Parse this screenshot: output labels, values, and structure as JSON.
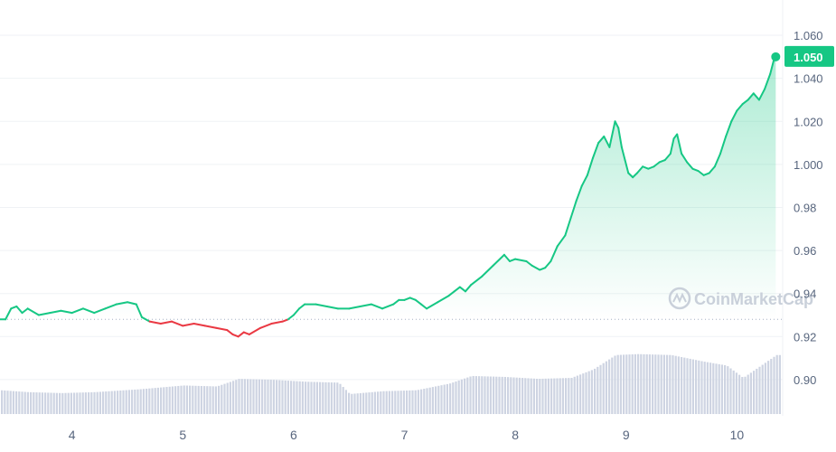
{
  "chart_data": {
    "type": "area",
    "title": "",
    "xlabel": "",
    "ylabel": "",
    "xlim": [
      3.35,
      10.38
    ],
    "ylim": [
      0.884,
      1.068
    ],
    "x_ticks": [
      {
        "value": 4,
        "label": "4"
      },
      {
        "value": 5,
        "label": "5"
      },
      {
        "value": 6,
        "label": "6"
      },
      {
        "value": 7,
        "label": "7"
      },
      {
        "value": 8,
        "label": "8"
      },
      {
        "value": 9,
        "label": "9"
      },
      {
        "value": 10,
        "label": "10"
      }
    ],
    "y_ticks": [
      {
        "value": 1.06,
        "label": "1.060"
      },
      {
        "value": 1.04,
        "label": "1.040"
      },
      {
        "value": 1.02,
        "label": "1.020"
      },
      {
        "value": 1.0,
        "label": "1.000"
      },
      {
        "value": 0.98,
        "label": "0.98"
      },
      {
        "value": 0.96,
        "label": "0.96"
      },
      {
        "value": 0.94,
        "label": "0.94"
      },
      {
        "value": 0.92,
        "label": "0.92"
      },
      {
        "value": 0.9,
        "label": "0.90"
      }
    ],
    "grid": true,
    "reference_price": 0.928,
    "current_price": {
      "value": 1.05,
      "label": "1.050"
    },
    "series": [
      {
        "points": [
          [
            3.35,
            0.928
          ],
          [
            3.4,
            0.928
          ],
          [
            3.45,
            0.933
          ],
          [
            3.5,
            0.934
          ],
          [
            3.55,
            0.931
          ],
          [
            3.6,
            0.933
          ],
          [
            3.7,
            0.93
          ],
          [
            3.8,
            0.931
          ],
          [
            3.9,
            0.932
          ],
          [
            4.0,
            0.931
          ],
          [
            4.1,
            0.933
          ],
          [
            4.2,
            0.931
          ],
          [
            4.3,
            0.933
          ],
          [
            4.4,
            0.935
          ],
          [
            4.5,
            0.936
          ],
          [
            4.58,
            0.935
          ],
          [
            4.63,
            0.929
          ],
          [
            4.7,
            0.927
          ],
          [
            4.8,
            0.926
          ],
          [
            4.9,
            0.927
          ],
          [
            5.0,
            0.925
          ],
          [
            5.1,
            0.926
          ],
          [
            5.2,
            0.925
          ],
          [
            5.3,
            0.924
          ],
          [
            5.4,
            0.923
          ],
          [
            5.45,
            0.921
          ],
          [
            5.5,
            0.92
          ],
          [
            5.55,
            0.922
          ],
          [
            5.6,
            0.921
          ],
          [
            5.7,
            0.924
          ],
          [
            5.8,
            0.926
          ],
          [
            5.9,
            0.927
          ],
          [
            5.95,
            0.928
          ],
          [
            6.0,
            0.93
          ],
          [
            6.05,
            0.933
          ],
          [
            6.1,
            0.935
          ],
          [
            6.2,
            0.935
          ],
          [
            6.3,
            0.934
          ],
          [
            6.4,
            0.933
          ],
          [
            6.5,
            0.933
          ],
          [
            6.6,
            0.934
          ],
          [
            6.7,
            0.935
          ],
          [
            6.8,
            0.933
          ],
          [
            6.9,
            0.935
          ],
          [
            6.95,
            0.937
          ],
          [
            7.0,
            0.937
          ],
          [
            7.05,
            0.938
          ],
          [
            7.1,
            0.937
          ],
          [
            7.15,
            0.935
          ],
          [
            7.2,
            0.933
          ],
          [
            7.3,
            0.936
          ],
          [
            7.4,
            0.939
          ],
          [
            7.45,
            0.941
          ],
          [
            7.5,
            0.943
          ],
          [
            7.55,
            0.941
          ],
          [
            7.6,
            0.944
          ],
          [
            7.7,
            0.948
          ],
          [
            7.8,
            0.953
          ],
          [
            7.9,
            0.958
          ],
          [
            7.95,
            0.955
          ],
          [
            8.0,
            0.956
          ],
          [
            8.1,
            0.955
          ],
          [
            8.15,
            0.953
          ],
          [
            8.22,
            0.951
          ],
          [
            8.27,
            0.952
          ],
          [
            8.32,
            0.955
          ],
          [
            8.38,
            0.962
          ],
          [
            8.45,
            0.967
          ],
          [
            8.5,
            0.975
          ],
          [
            8.55,
            0.983
          ],
          [
            8.6,
            0.99
          ],
          [
            8.65,
            0.995
          ],
          [
            8.7,
            1.003
          ],
          [
            8.75,
            1.01
          ],
          [
            8.8,
            1.013
          ],
          [
            8.85,
            1.008
          ],
          [
            8.9,
            1.02
          ],
          [
            8.93,
            1.017
          ],
          [
            8.96,
            1.008
          ],
          [
            8.99,
            1.002
          ],
          [
            9.02,
            0.996
          ],
          [
            9.06,
            0.994
          ],
          [
            9.1,
            0.996
          ],
          [
            9.15,
            0.999
          ],
          [
            9.2,
            0.998
          ],
          [
            9.25,
            0.999
          ],
          [
            9.3,
            1.001
          ],
          [
            9.35,
            1.002
          ],
          [
            9.4,
            1.005
          ],
          [
            9.43,
            1.012
          ],
          [
            9.46,
            1.014
          ],
          [
            9.5,
            1.005
          ],
          [
            9.55,
            1.001
          ],
          [
            9.6,
            0.998
          ],
          [
            9.65,
            0.997
          ],
          [
            9.7,
            0.995
          ],
          [
            9.75,
            0.996
          ],
          [
            9.8,
            0.999
          ],
          [
            9.85,
            1.005
          ],
          [
            9.9,
            1.013
          ],
          [
            9.95,
            1.02
          ],
          [
            10.0,
            1.025
          ],
          [
            10.05,
            1.028
          ],
          [
            10.1,
            1.03
          ],
          [
            10.15,
            1.033
          ],
          [
            10.2,
            1.03
          ],
          [
            10.25,
            1.035
          ],
          [
            10.3,
            1.042
          ],
          [
            10.33,
            1.048
          ],
          [
            10.35,
            1.05
          ]
        ]
      }
    ],
    "volume": [
      [
        3.35,
        0.25
      ],
      [
        3.6,
        0.23
      ],
      [
        3.9,
        0.22
      ],
      [
        4.2,
        0.23
      ],
      [
        4.6,
        0.26
      ],
      [
        5.0,
        0.3
      ],
      [
        5.3,
        0.29
      ],
      [
        5.5,
        0.37
      ],
      [
        5.8,
        0.36
      ],
      [
        6.1,
        0.34
      ],
      [
        6.4,
        0.33
      ],
      [
        6.5,
        0.21
      ],
      [
        6.8,
        0.24
      ],
      [
        7.1,
        0.25
      ],
      [
        7.4,
        0.32
      ],
      [
        7.6,
        0.4
      ],
      [
        7.9,
        0.39
      ],
      [
        8.2,
        0.37
      ],
      [
        8.5,
        0.38
      ],
      [
        8.7,
        0.47
      ],
      [
        8.9,
        0.62
      ],
      [
        9.1,
        0.63
      ],
      [
        9.4,
        0.62
      ],
      [
        9.7,
        0.55
      ],
      [
        9.9,
        0.51
      ],
      [
        10.05,
        0.38
      ],
      [
        10.2,
        0.5
      ],
      [
        10.35,
        0.62
      ]
    ],
    "colors": {
      "up": "#16c784",
      "down": "#ea3943",
      "price_tag": "#16c784",
      "volume": "#ced4e2",
      "grid": "#eff2f5",
      "axis_text": "#58667e",
      "reference_line": "#a6b0c3"
    }
  },
  "watermark": {
    "text": "CoinMarketCap",
    "icon": "coinmarketcap-logo-icon"
  }
}
